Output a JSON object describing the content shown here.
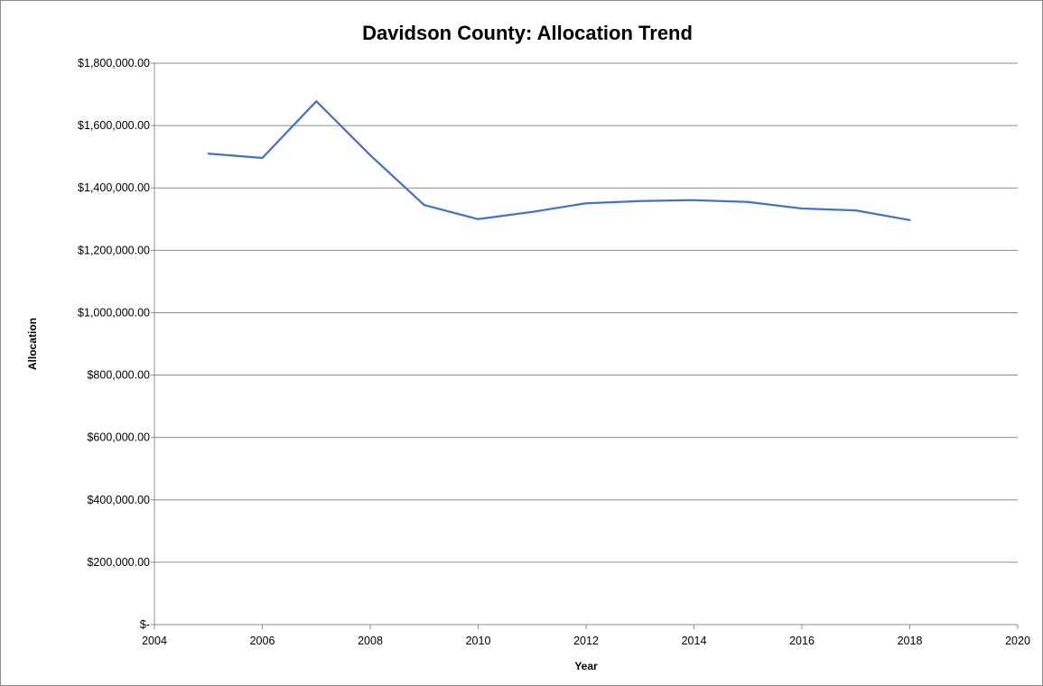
{
  "chart_data": {
    "type": "scatter",
    "title": "Davidson County: Allocation Trend",
    "xlabel": "Year",
    "ylabel": "Allocation",
    "xlim": [
      2004,
      2020
    ],
    "ylim": [
      0,
      1800000
    ],
    "x_ticks": [
      2004,
      2006,
      2008,
      2010,
      2012,
      2014,
      2016,
      2018,
      2020
    ],
    "x_tick_labels": [
      "2004",
      "2006",
      "2008",
      "2010",
      "2012",
      "2014",
      "2016",
      "2018",
      "2020"
    ],
    "y_ticks": [
      0,
      200000,
      400000,
      600000,
      800000,
      1000000,
      1200000,
      1400000,
      1600000,
      1800000
    ],
    "y_tick_labels": [
      "$-",
      "$200,000.00",
      "$400,000.00",
      "$600,000.00",
      "$800,000.00",
      "$1,000,000.00",
      "$1,200,000.00",
      "$1,400,000.00",
      "$1,600,000.00",
      "$1,800,000.00"
    ],
    "grid": true,
    "legend": "none",
    "line_color": "#4472C4",
    "series": [
      {
        "x": [
          2005,
          2006,
          2007,
          2008,
          2009,
          2010,
          2011,
          2012,
          2013,
          2014,
          2015,
          2016,
          2017,
          2018
        ],
        "values": [
          1510000,
          1496000,
          1678000,
          1505000,
          1345000,
          1300000,
          1323000,
          1351000,
          1358000,
          1361000,
          1355000,
          1334000,
          1328000,
          1297000
        ]
      }
    ]
  }
}
